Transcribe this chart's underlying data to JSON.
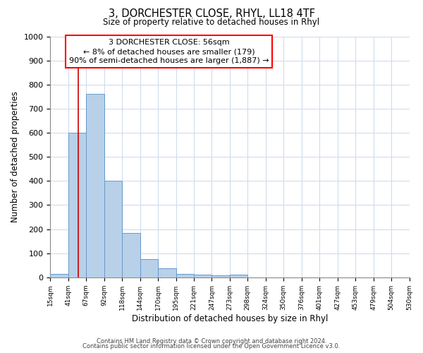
{
  "title": "3, DORCHESTER CLOSE, RHYL, LL18 4TF",
  "subtitle": "Size of property relative to detached houses in Rhyl",
  "bar_heights": [
    15,
    600,
    760,
    400,
    185,
    75,
    38,
    15,
    12,
    8,
    12,
    0,
    0,
    0,
    0,
    0,
    0,
    0,
    0,
    0
  ],
  "bar_labels": [
    "15sqm",
    "41sqm",
    "67sqm",
    "92sqm",
    "118sqm",
    "144sqm",
    "170sqm",
    "195sqm",
    "221sqm",
    "247sqm",
    "273sqm",
    "298sqm",
    "324sqm",
    "350sqm",
    "376sqm",
    "401sqm",
    "427sqm",
    "453sqm",
    "479sqm",
    "504sqm",
    "530sqm"
  ],
  "bar_color": "#b8d0e8",
  "bar_edge_color": "#6699cc",
  "xlabel": "Distribution of detached houses by size in Rhyl",
  "ylabel": "Number of detached properties",
  "ylim": [
    0,
    1000
  ],
  "yticks": [
    0,
    100,
    200,
    300,
    400,
    500,
    600,
    700,
    800,
    900,
    1000
  ],
  "annotation_title": "3 DORCHESTER CLOSE: 56sqm",
  "annotation_line1": "← 8% of detached houses are smaller (179)",
  "annotation_line2": "90% of semi-detached houses are larger (1,887) →",
  "footer_line1": "Contains HM Land Registry data © Crown copyright and database right 2024.",
  "footer_line2": "Contains public sector information licensed under the Open Government Licence v3.0.",
  "background_color": "#ffffff",
  "grid_color": "#ccd8ea"
}
